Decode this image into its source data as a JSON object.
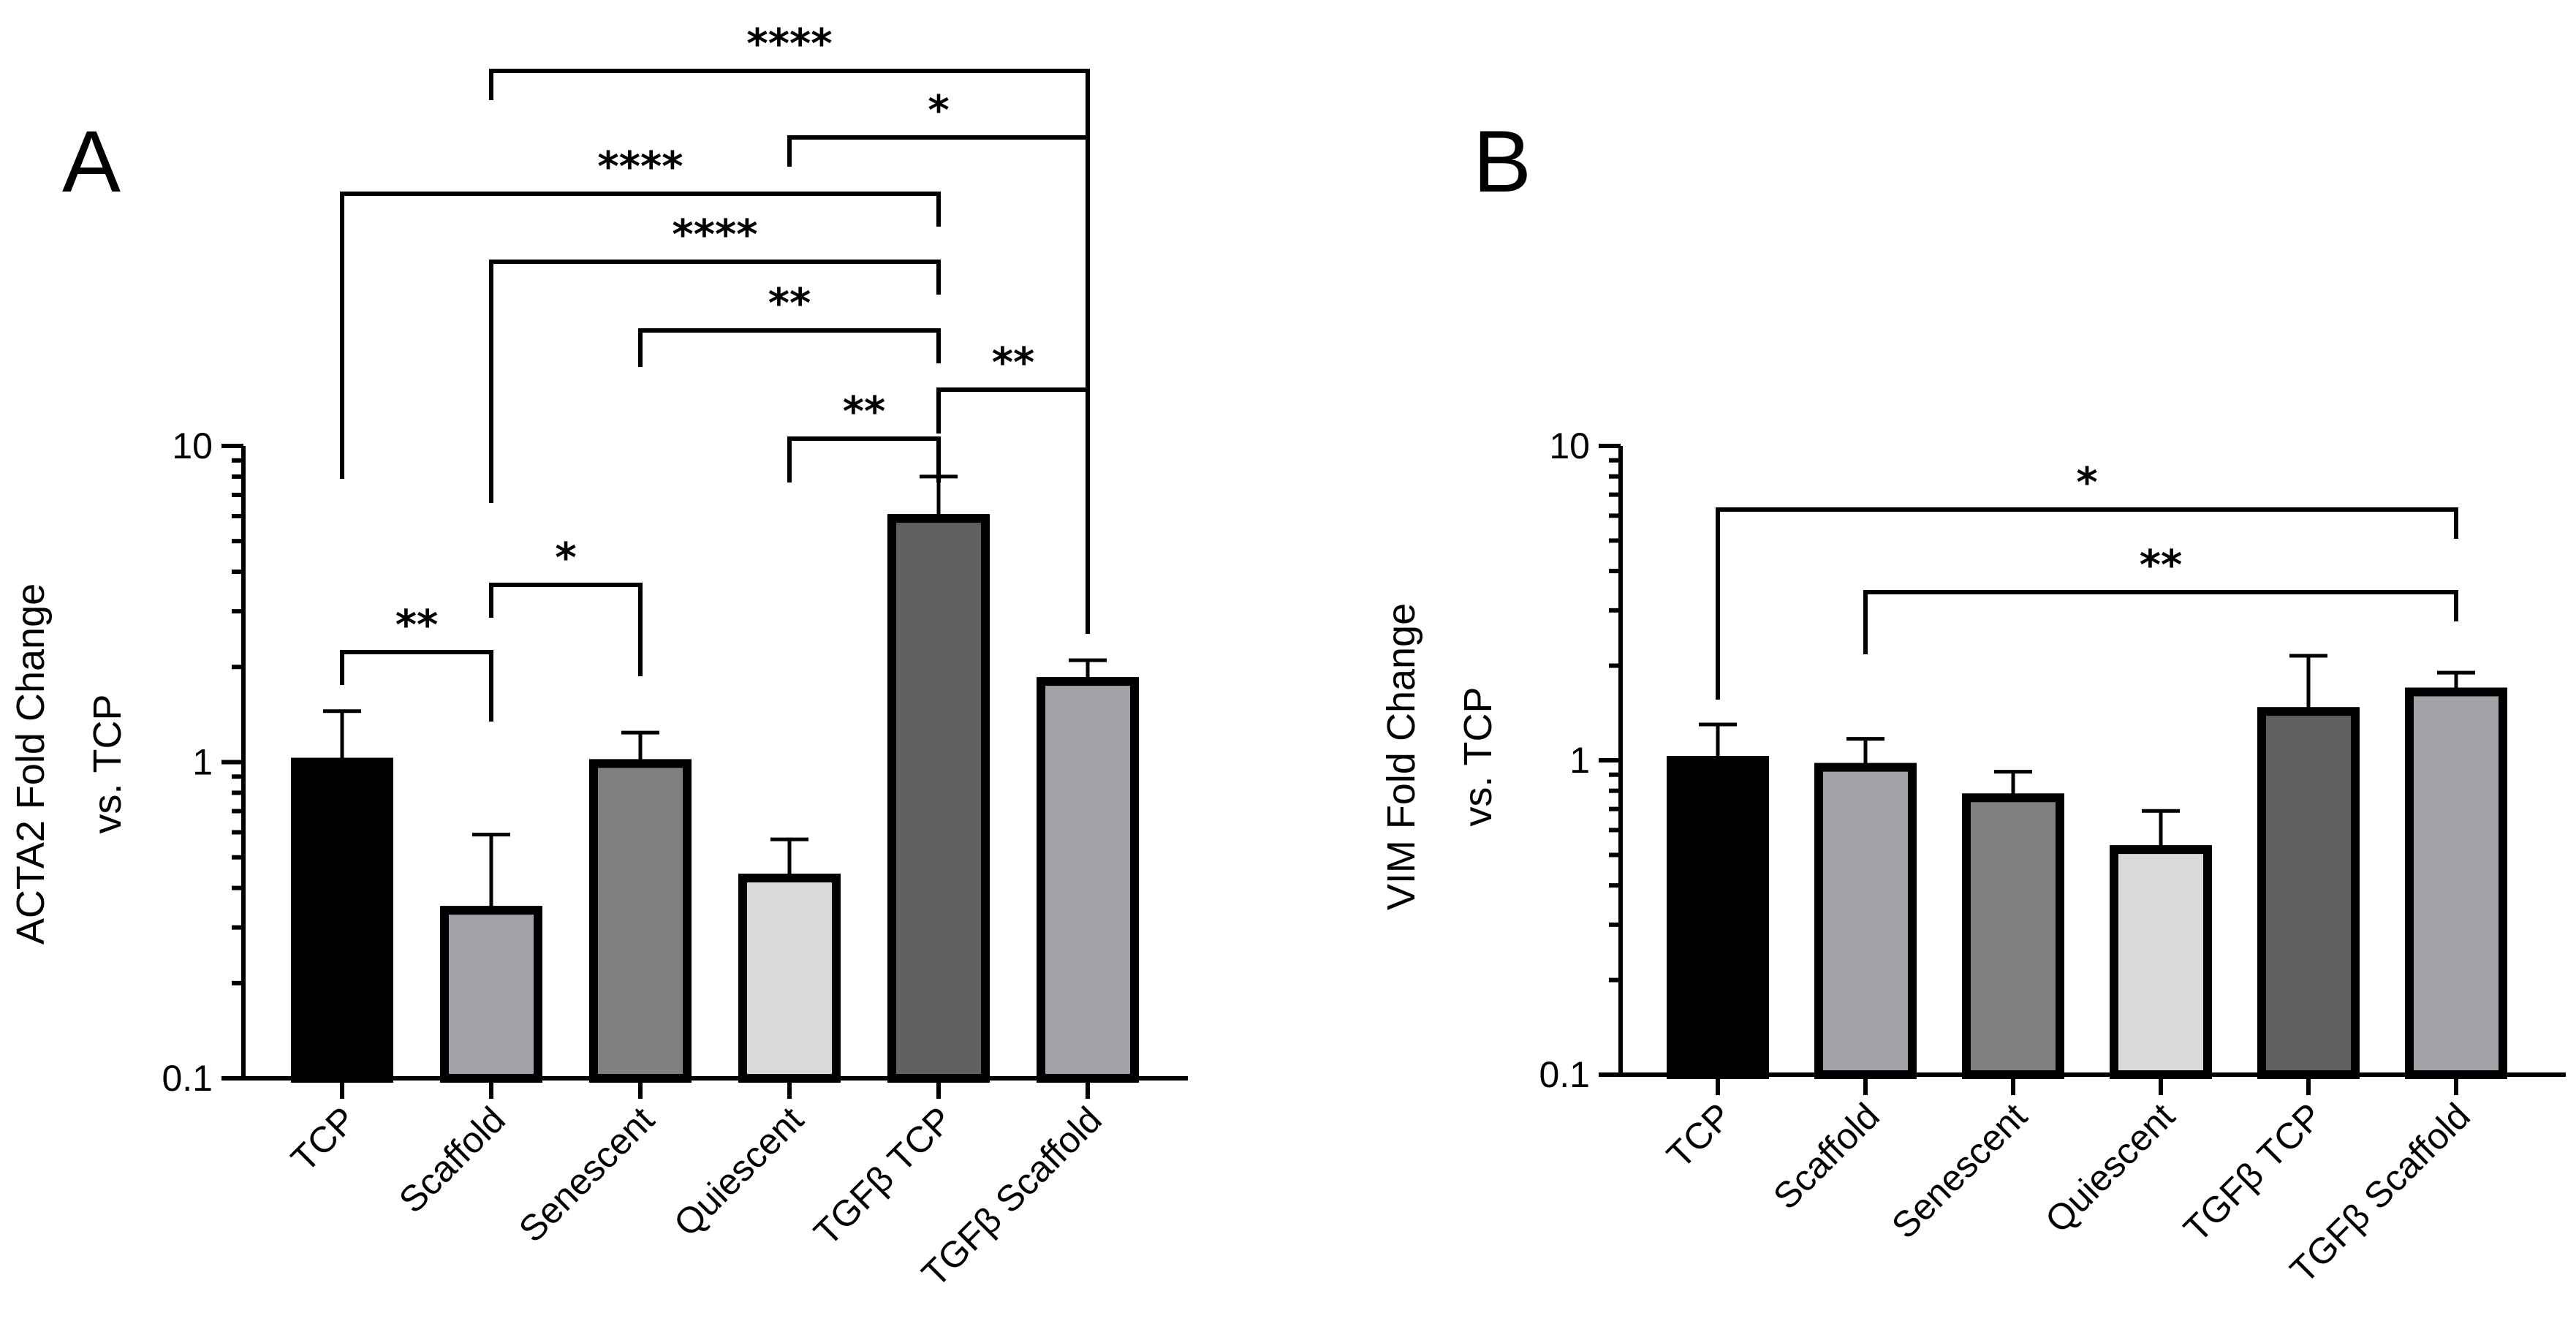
{
  "chart_data": [
    {
      "type": "bar",
      "panel_label": "A",
      "ylabel_lines": [
        "ACTA2 Fold Change",
        "vs. TCP"
      ],
      "yscale": "log",
      "ylim": [
        0.1,
        10
      ],
      "yticks": [
        0.1,
        1,
        10
      ],
      "ytick_labels": [
        "0.1",
        "1",
        "10"
      ],
      "categories": [
        "TCP",
        "Scaffold",
        "Senescent",
        "Quiescent",
        "TGFβ TCP",
        "TGFβ Scaffold"
      ],
      "values": [
        1.0,
        0.34,
        0.99,
        0.43,
        5.9,
        1.8
      ],
      "error_upper": [
        1.45,
        0.59,
        1.24,
        0.57,
        8.0,
        2.1
      ],
      "bar_colors": [
        "#000000",
        "#a3a2a8",
        "#808080",
        "#d9d9d9",
        "#606060",
        "#a3a2a8"
      ],
      "significance": [
        {
          "from": "TCP",
          "to": "Scaffold",
          "label": "**"
        },
        {
          "from": "Scaffold",
          "to": "Senescent",
          "label": "*"
        },
        {
          "from": "Quiescent",
          "to": "TGFβ TCP",
          "label": "**"
        },
        {
          "from": "TGFβ TCP",
          "to": "TGFβ Scaffold",
          "label": "**"
        },
        {
          "from": "Senescent",
          "to": "TGFβ TCP",
          "label": "**"
        },
        {
          "from": "Scaffold",
          "to": "TGFβ TCP",
          "label": "****"
        },
        {
          "from": "TCP",
          "to": "TGFβ TCP",
          "label": "****"
        },
        {
          "from": "Quiescent",
          "to": "TGFβ Scaffold",
          "label": "*"
        },
        {
          "from": "Scaffold",
          "to": "TGFβ Scaffold",
          "label": "****"
        }
      ]
    },
    {
      "type": "bar",
      "panel_label": "B",
      "ylabel_lines": [
        "VIM Fold Change",
        "vs. TCP"
      ],
      "yscale": "log",
      "ylim": [
        0.1,
        10
      ],
      "yticks": [
        0.1,
        1,
        10
      ],
      "ytick_labels": [
        "0.1",
        "1",
        "10"
      ],
      "categories": [
        "TCP",
        "Scaffold",
        "Senescent",
        "Quiescent",
        "TGFβ TCP",
        "TGFβ Scaffold"
      ],
      "values": [
        1.0,
        0.95,
        0.76,
        0.52,
        1.43,
        1.65
      ],
      "error_upper": [
        1.3,
        1.17,
        0.92,
        0.69,
        2.15,
        1.9
      ],
      "bar_colors": [
        "#000000",
        "#a3a2a8",
        "#808080",
        "#d9d9d9",
        "#606060",
        "#a3a2a8"
      ],
      "significance": [
        {
          "from": "Scaffold",
          "to": "TGFβ Scaffold",
          "label": "**"
        },
        {
          "from": "TCP",
          "to": "TGFβ Scaffold",
          "label": "*"
        }
      ]
    }
  ]
}
